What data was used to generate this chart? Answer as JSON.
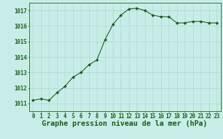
{
  "x": [
    0,
    1,
    2,
    3,
    4,
    5,
    6,
    7,
    8,
    9,
    10,
    11,
    12,
    13,
    14,
    15,
    16,
    17,
    18,
    19,
    20,
    21,
    22,
    23
  ],
  "y": [
    1011.2,
    1011.3,
    1011.2,
    1011.7,
    1012.1,
    1012.7,
    1013.0,
    1013.5,
    1013.8,
    1015.1,
    1016.1,
    1016.7,
    1017.1,
    1017.15,
    1017.0,
    1016.7,
    1016.6,
    1016.6,
    1016.2,
    1016.2,
    1016.3,
    1016.3,
    1016.2,
    1016.2
  ],
  "ylim": [
    1010.5,
    1017.5
  ],
  "yticks": [
    1011,
    1012,
    1013,
    1014,
    1015,
    1016,
    1017
  ],
  "xticks": [
    0,
    1,
    2,
    3,
    4,
    5,
    6,
    7,
    8,
    9,
    10,
    11,
    12,
    13,
    14,
    15,
    16,
    17,
    18,
    19,
    20,
    21,
    22,
    23
  ],
  "xlabel": "Graphe pression niveau de la mer (hPa)",
  "line_color": "#1a5c1a",
  "marker": "D",
  "marker_size": 2.0,
  "bg_color": "#c8ede8",
  "grid_color": "#aed4cc",
  "tick_color": "#1a5c1a",
  "label_color": "#1a5c1a",
  "font_size_ticks": 5.5,
  "font_size_xlabel": 7.5
}
